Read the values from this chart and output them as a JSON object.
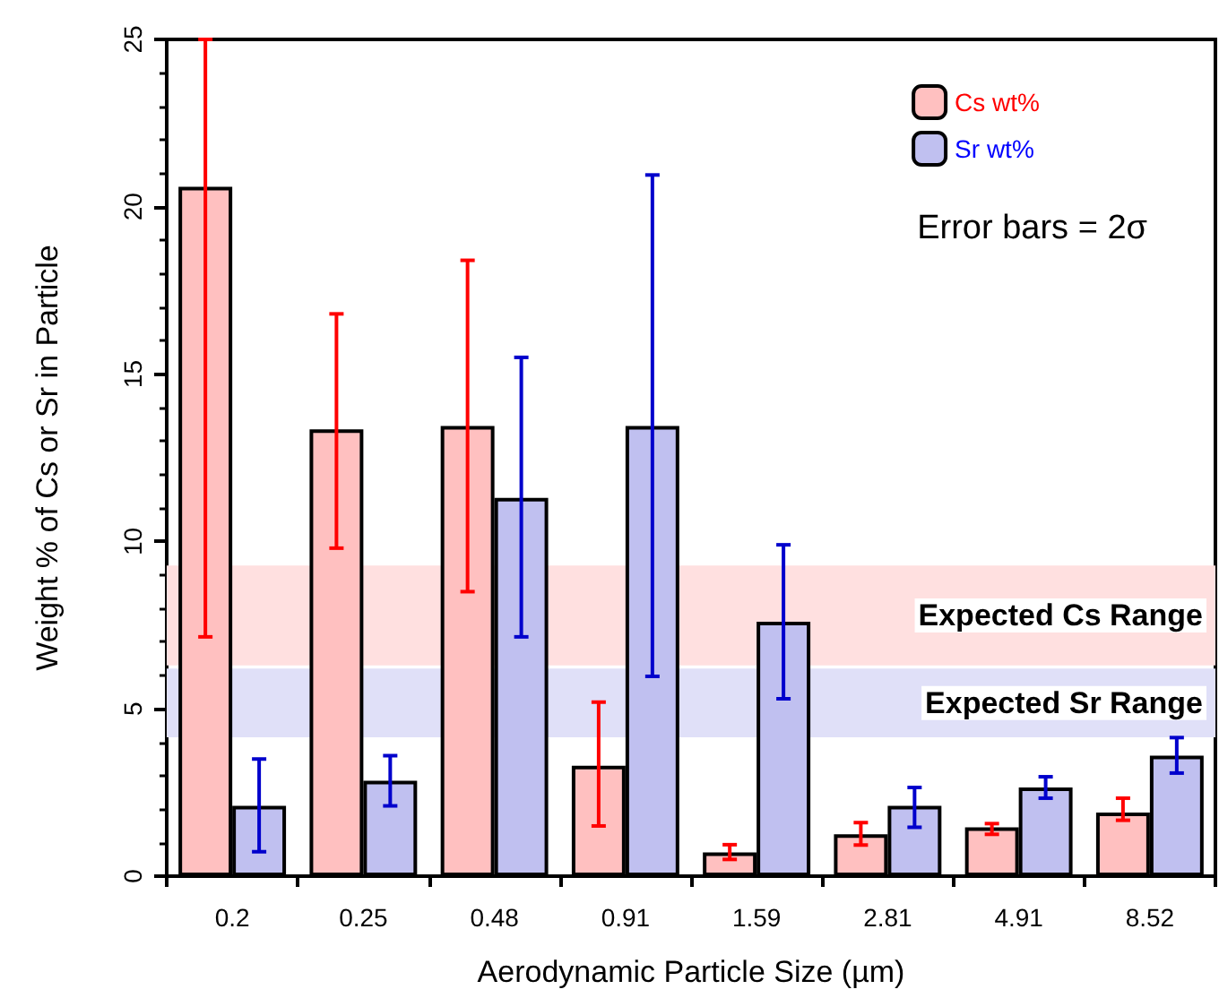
{
  "chart_data": {
    "type": "bar",
    "xlabel": "Aerodynamic Particle Size (µm)",
    "ylabel": "Weight % of Cs or Sr in Particle",
    "categories": [
      "0.2",
      "0.25",
      "0.48",
      "0.91",
      "1.59",
      "2.81",
      "4.91",
      "8.52"
    ],
    "series": [
      {
        "name": "Cs wt%",
        "color": "#ffc0c0",
        "values": [
          20.6,
          13.35,
          13.45,
          3.3,
          0.71,
          1.25,
          1.46,
          1.9
        ],
        "errors": [
          [
            7.15,
            25
          ],
          [
            9.8,
            16.8
          ],
          [
            8.5,
            18.4
          ],
          [
            1.5,
            5.2
          ],
          [
            0.5,
            0.94
          ],
          [
            0.93,
            1.6
          ],
          [
            1.25,
            1.57
          ],
          [
            1.67,
            2.33
          ]
        ]
      },
      {
        "name": "Sr wt%",
        "color": "#c0c0f0",
        "values": [
          2.1,
          2.85,
          11.3,
          13.45,
          7.6,
          2.1,
          2.65,
          3.6
        ],
        "errors": [
          [
            0.73,
            3.5
          ],
          [
            2.1,
            3.6
          ],
          [
            7.15,
            15.5
          ],
          [
            5.97,
            20.95
          ],
          [
            5.3,
            9.9
          ],
          [
            1.46,
            2.65
          ],
          [
            2.33,
            2.97
          ],
          [
            3.08,
            4.14
          ]
        ]
      }
    ],
    "ylim": [
      0,
      25
    ],
    "yticks": [
      0,
      5,
      10,
      15,
      20,
      25
    ],
    "bands": [
      {
        "axis": "y",
        "from": 6.3,
        "to": 9.28,
        "label": "Expected Cs Range",
        "color": "#ffe0e0"
      },
      {
        "axis": "y",
        "from": 4.15,
        "to": 6.2,
        "label": "Expected Sr Range",
        "color": "#e0e0f8"
      }
    ],
    "annotations": [
      "Error bars = 2σ"
    ],
    "grid": false,
    "legend": "top right"
  }
}
